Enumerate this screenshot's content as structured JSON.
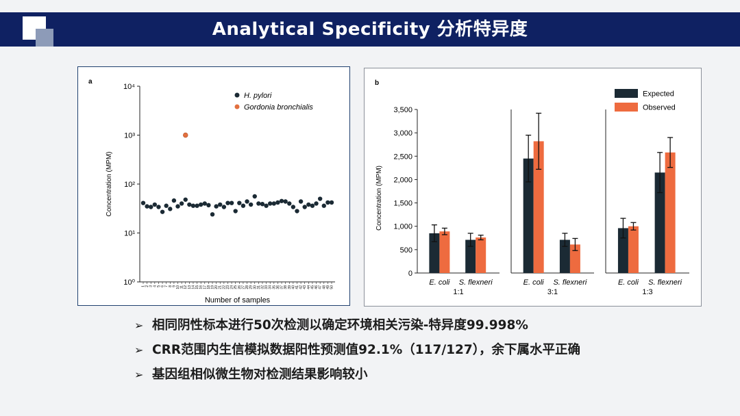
{
  "slide": {
    "title": "Analytical Specificity  分析特异度",
    "bullets": [
      "相同阴性标本进行50次检测以确定环境相关污染-特异度99.998%",
      "CRR范围内生信模拟数据阳性预测值92.1%（117/127），余下属水平正确",
      "基因组相似微生物对检测结果影响较小"
    ],
    "bullet_glyph": "➢",
    "colors": {
      "header": "#0f2162",
      "expected": "#1b2a34",
      "observed": "#ee6b3f",
      "h_pylori": "#1b2a34",
      "gordonia": "#e2703f"
    }
  },
  "chart_data": [
    {
      "type": "scatter",
      "panel_label": "a",
      "yscale": "log",
      "ylim": [
        1,
        10000
      ],
      "ylabel": "Concentration (MPM)",
      "xlabel": "Number of samples",
      "ytick_labels": [
        "10⁰",
        "10¹",
        "10²",
        "10³",
        "10⁴"
      ],
      "xtick_labels": [
        "1",
        "2",
        "3",
        "4",
        "5",
        "6",
        "7",
        "8",
        "9",
        "10",
        "11",
        "12",
        "13",
        "14",
        "15",
        "16",
        "17",
        "18",
        "19",
        "20",
        "21",
        "22",
        "23",
        "24",
        "25",
        "26",
        "27",
        "28",
        "29",
        "30",
        "31",
        "32",
        "33",
        "34",
        "35",
        "36",
        "37",
        "38",
        "39",
        "40",
        "41",
        "42",
        "43",
        "44",
        "45",
        "46",
        "47",
        "48",
        "49",
        "50"
      ],
      "legend_position": "top-right",
      "series": [
        {
          "name": "H. pylori",
          "color": "#1b2a34",
          "x": [
            1,
            2,
            3,
            4,
            5,
            6,
            7,
            8,
            9,
            10,
            11,
            12,
            13,
            14,
            15,
            16,
            17,
            18,
            19,
            20,
            21,
            22,
            23,
            24,
            25,
            26,
            27,
            28,
            29,
            30,
            31,
            32,
            33,
            34,
            35,
            36,
            37,
            38,
            39,
            40,
            41,
            42,
            43,
            44,
            45,
            46,
            47,
            48,
            49,
            50
          ],
          "y": [
            41,
            35,
            34,
            38,
            34,
            27,
            36,
            31,
            46,
            35,
            40,
            48,
            38,
            36,
            36,
            38,
            40,
            37,
            24,
            35,
            38,
            34,
            41,
            41,
            28,
            41,
            36,
            44,
            38,
            56,
            40,
            39,
            36,
            40,
            40,
            42,
            45,
            44,
            40,
            34,
            28,
            44,
            34,
            38,
            36,
            40,
            50,
            36,
            42,
            42
          ]
        },
        {
          "name": "Gordonia bronchialis",
          "color": "#e2703f",
          "x": [
            12
          ],
          "y": [
            1000
          ]
        }
      ]
    },
    {
      "type": "bar",
      "panel_label": "b",
      "ylabel": "Concentration (MPM)",
      "ylim": [
        0,
        3500
      ],
      "yticks": [
        "0",
        "500",
        "1,000",
        "1,500",
        "2,000",
        "2,500",
        "3,000",
        "3,500"
      ],
      "legend_position": "top-right",
      "legend": [
        "Expected",
        "Observed"
      ],
      "groups": [
        {
          "ratio": "1:1",
          "categories": [
            "E. coli",
            "S. flexneri"
          ],
          "expected": [
            850,
            710
          ],
          "expected_err": [
            180,
            140
          ],
          "observed": [
            890,
            760
          ],
          "observed_err": [
            70,
            50
          ]
        },
        {
          "ratio": "3:1",
          "categories": [
            "E. coli",
            "S. flexneri"
          ],
          "expected": [
            2450,
            710
          ],
          "expected_err": [
            500,
            140
          ],
          "observed": [
            2820,
            610
          ],
          "observed_err": [
            600,
            130
          ]
        },
        {
          "ratio": "1:3",
          "categories": [
            "E. coli",
            "S. flexneri"
          ],
          "expected": [
            960,
            2150
          ],
          "expected_err": [
            210,
            430
          ],
          "observed": [
            1000,
            2580
          ],
          "observed_err": [
            80,
            320
          ]
        }
      ]
    }
  ]
}
